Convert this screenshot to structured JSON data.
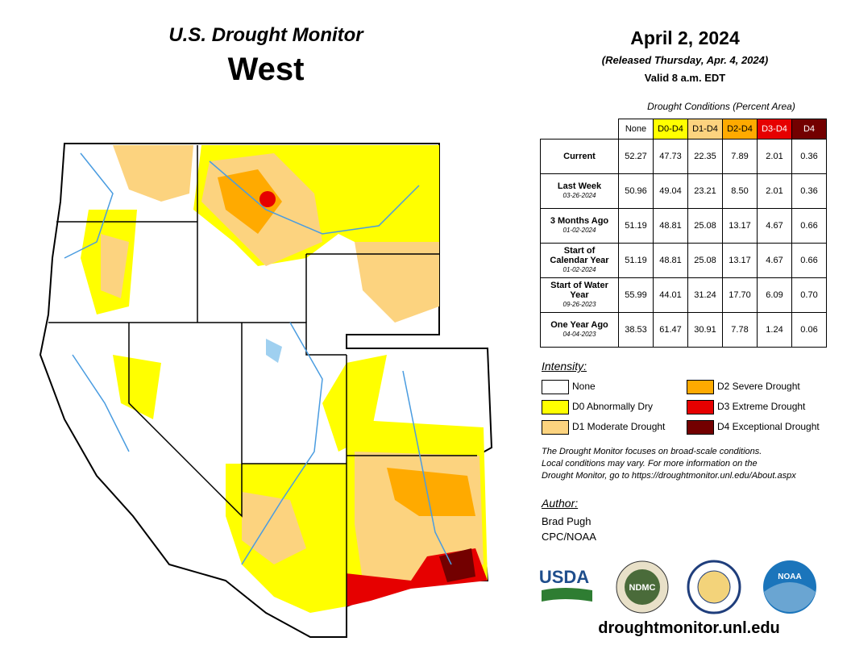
{
  "header": {
    "title": "U.S. Drought Monitor",
    "region": "West",
    "date": "April 2, 2024",
    "released": "(Released Thursday, Apr. 4, 2024)",
    "valid": "Valid 8 a.m. EDT"
  },
  "table": {
    "caption": "Drought Conditions (Percent Area)",
    "columns": [
      {
        "label": "None",
        "color": "#ffffff",
        "text": "#000000"
      },
      {
        "label": "D0-D4",
        "color": "#ffff00",
        "text": "#000000"
      },
      {
        "label": "D1-D4",
        "color": "#fcd37f",
        "text": "#000000"
      },
      {
        "label": "D2-D4",
        "color": "#ffaa00",
        "text": "#000000"
      },
      {
        "label": "D3-D4",
        "color": "#e60000",
        "text": "#ffffff"
      },
      {
        "label": "D4",
        "color": "#730000",
        "text": "#ffffff"
      }
    ],
    "rows": [
      {
        "label": "Current",
        "values": [
          "52.27",
          "47.73",
          "22.35",
          "7.89",
          "2.01",
          "0.36"
        ]
      },
      {
        "label": "Last Week",
        "date": "03-26-2024",
        "values": [
          "50.96",
          "49.04",
          "23.21",
          "8.50",
          "2.01",
          "0.36"
        ]
      },
      {
        "label": "3 Months Ago",
        "date": "01-02-2024",
        "values": [
          "51.19",
          "48.81",
          "25.08",
          "13.17",
          "4.67",
          "0.66"
        ]
      },
      {
        "label": "Start of Calendar Year",
        "date": "01-02-2024",
        "values": [
          "51.19",
          "48.81",
          "25.08",
          "13.17",
          "4.67",
          "0.66"
        ]
      },
      {
        "label": "Start of Water Year",
        "date": "09-26-2023",
        "values": [
          "55.99",
          "44.01",
          "31.24",
          "17.70",
          "6.09",
          "0.70"
        ]
      },
      {
        "label": "One Year Ago",
        "date": "04-04-2023",
        "values": [
          "38.53",
          "61.47",
          "30.91",
          "7.78",
          "1.24",
          "0.06"
        ]
      }
    ]
  },
  "legend": {
    "title": "Intensity:",
    "items": [
      {
        "label": "None",
        "color": "#ffffff"
      },
      {
        "label": "D0 Abnormally Dry",
        "color": "#ffff00"
      },
      {
        "label": "D1 Moderate Drought",
        "color": "#fcd37f"
      },
      {
        "label": "D2 Severe Drought",
        "color": "#ffaa00"
      },
      {
        "label": "D3 Extreme Drought",
        "color": "#e60000"
      },
      {
        "label": "D4 Exceptional Drought",
        "color": "#730000"
      }
    ]
  },
  "note": [
    "The Drought Monitor focuses on broad-scale conditions.",
    "Local conditions may vary. For more information on the",
    "Drought Monitor, go to https://droughtmonitor.unl.edu/About.aspx"
  ],
  "author": {
    "heading": "Author:",
    "lines": [
      "Brad Pugh",
      "CPC/NOAA"
    ]
  },
  "logos": [
    "USDA",
    "NDMC",
    "NOAA"
  ],
  "url": "droughtmonitor.unl.edu"
}
